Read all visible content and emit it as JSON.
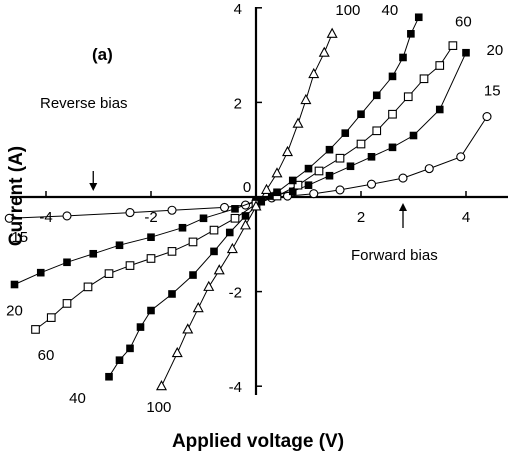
{
  "chart_data": {
    "type": "line",
    "panel_label": "(a)",
    "xlabel": "Applied voltage (V)",
    "ylabel": "Current (A)",
    "xlim": [
      -5.2,
      5.2
    ],
    "ylim": [
      -4.3,
      4.0
    ],
    "x_ticks": [
      -4,
      -2,
      0,
      2,
      4
    ],
    "y_ticks": [
      -4,
      -2,
      0,
      2,
      4
    ],
    "x_tick_labels": [
      "-4",
      "-2",
      "0",
      "2",
      "4"
    ],
    "y_tick_labels": [
      "-4",
      "-2",
      "0",
      "2",
      "4"
    ],
    "grid": false,
    "annotations": [
      {
        "text": "Reverse bias",
        "arrow_x": -3.1
      },
      {
        "text": "Forward bias",
        "arrow_x": 2.8
      }
    ],
    "series": [
      {
        "name": "15",
        "marker": "circle-open",
        "points": [
          [
            -4.7,
            -0.45
          ],
          [
            -3.6,
            -0.4
          ],
          [
            -2.4,
            -0.33
          ],
          [
            -1.6,
            -0.28
          ],
          [
            -0.6,
            -0.22
          ],
          [
            -0.2,
            -0.17
          ],
          [
            0.0,
            -0.1
          ],
          [
            0.3,
            -0.02
          ],
          [
            0.6,
            0.02
          ],
          [
            1.1,
            0.07
          ],
          [
            1.6,
            0.15
          ],
          [
            2.2,
            0.27
          ],
          [
            2.8,
            0.4
          ],
          [
            3.3,
            0.6
          ],
          [
            3.9,
            0.85
          ],
          [
            4.4,
            1.7
          ]
        ],
        "labels": [
          {
            "text": "15",
            "x": -4.5,
            "y": -0.95
          },
          {
            "text": "15",
            "x": 4.5,
            "y": 2.15
          }
        ]
      },
      {
        "name": "20",
        "marker": "square-filled",
        "points": [
          [
            -4.6,
            -1.85
          ],
          [
            -4.1,
            -1.6
          ],
          [
            -3.6,
            -1.38
          ],
          [
            -3.1,
            -1.2
          ],
          [
            -2.6,
            -1.02
          ],
          [
            -2.0,
            -0.85
          ],
          [
            -1.4,
            -0.65
          ],
          [
            -1.0,
            -0.45
          ],
          [
            -0.4,
            -0.25
          ],
          [
            0.0,
            -0.08
          ],
          [
            0.3,
            0.02
          ],
          [
            0.7,
            0.12
          ],
          [
            1.0,
            0.25
          ],
          [
            1.4,
            0.45
          ],
          [
            1.8,
            0.65
          ],
          [
            2.2,
            0.85
          ],
          [
            2.6,
            1.05
          ],
          [
            3.0,
            1.3
          ],
          [
            3.5,
            1.85
          ],
          [
            4.0,
            3.05
          ]
        ],
        "labels": [
          {
            "text": "20",
            "x": -4.6,
            "y": -2.5
          },
          {
            "text": "20",
            "x": 4.55,
            "y": 3.0
          }
        ]
      },
      {
        "name": "60",
        "marker": "square-open",
        "points": [
          [
            -4.2,
            -2.8
          ],
          [
            -3.9,
            -2.55
          ],
          [
            -3.6,
            -2.25
          ],
          [
            -3.2,
            -1.9
          ],
          [
            -2.8,
            -1.62
          ],
          [
            -2.4,
            -1.45
          ],
          [
            -2.0,
            -1.3
          ],
          [
            -1.6,
            -1.15
          ],
          [
            -1.2,
            -0.95
          ],
          [
            -0.8,
            -0.7
          ],
          [
            -0.4,
            -0.45
          ],
          [
            0.0,
            -0.15
          ],
          [
            0.4,
            0.02
          ],
          [
            0.8,
            0.25
          ],
          [
            1.2,
            0.55
          ],
          [
            1.6,
            0.82
          ],
          [
            2.0,
            1.12
          ],
          [
            2.3,
            1.4
          ],
          [
            2.6,
            1.75
          ],
          [
            2.9,
            2.12
          ],
          [
            3.2,
            2.5
          ],
          [
            3.5,
            2.78
          ],
          [
            3.75,
            3.2
          ]
        ],
        "labels": [
          {
            "text": "60",
            "x": -4.0,
            "y": -3.45
          },
          {
            "text": "60",
            "x": 3.95,
            "y": 3.6
          }
        ]
      },
      {
        "name": "40",
        "marker": "square-filled",
        "points": [
          [
            -2.8,
            -3.8
          ],
          [
            -2.6,
            -3.45
          ],
          [
            -2.4,
            -3.2
          ],
          [
            -2.2,
            -2.75
          ],
          [
            -2.0,
            -2.4
          ],
          [
            -1.6,
            -2.05
          ],
          [
            -1.2,
            -1.65
          ],
          [
            -0.8,
            -1.15
          ],
          [
            -0.5,
            -0.75
          ],
          [
            -0.2,
            -0.4
          ],
          [
            0.1,
            -0.1
          ],
          [
            0.4,
            0.1
          ],
          [
            0.7,
            0.35
          ],
          [
            1.0,
            0.6
          ],
          [
            1.4,
            1.0
          ],
          [
            1.7,
            1.35
          ],
          [
            2.0,
            1.75
          ],
          [
            2.3,
            2.15
          ],
          [
            2.6,
            2.55
          ],
          [
            2.8,
            2.95
          ],
          [
            2.95,
            3.45
          ],
          [
            3.1,
            3.8
          ]
        ],
        "labels": [
          {
            "text": "40",
            "x": -3.4,
            "y": -4.35
          },
          {
            "text": "40",
            "x": 2.55,
            "y": 3.85
          }
        ]
      },
      {
        "name": "100",
        "marker": "triangle-open",
        "points": [
          [
            -1.8,
            -4.0
          ],
          [
            -1.5,
            -3.3
          ],
          [
            -1.3,
            -2.8
          ],
          [
            -1.1,
            -2.35
          ],
          [
            -0.9,
            -1.9
          ],
          [
            -0.7,
            -1.55
          ],
          [
            -0.45,
            -1.1
          ],
          [
            -0.2,
            -0.6
          ],
          [
            0.0,
            -0.2
          ],
          [
            0.2,
            0.15
          ],
          [
            0.4,
            0.5
          ],
          [
            0.6,
            0.95
          ],
          [
            0.8,
            1.55
          ],
          [
            0.95,
            2.05
          ],
          [
            1.1,
            2.6
          ],
          [
            1.3,
            3.05
          ],
          [
            1.45,
            3.45
          ]
        ],
        "labels": [
          {
            "text": "100",
            "x": 1.75,
            "y": 3.85
          },
          {
            "text": "100",
            "x": -1.85,
            "y": -4.55
          }
        ]
      }
    ]
  }
}
